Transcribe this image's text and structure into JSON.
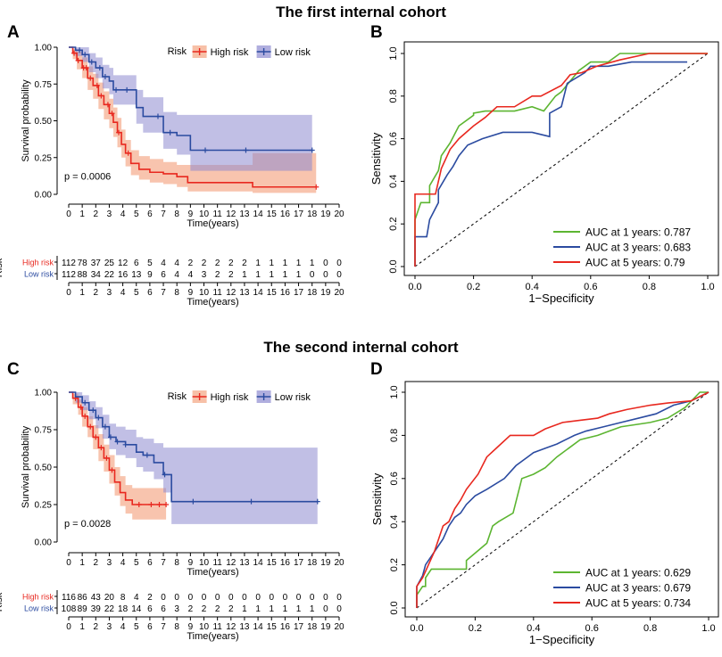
{
  "titles": {
    "cohort1": "The first internal cohort",
    "cohort2": "The second internal cohort"
  },
  "panel_letters": {
    "A": "A",
    "B": "B",
    "C": "C",
    "D": "D"
  },
  "colors": {
    "high_risk": "#e8281f",
    "low_risk": "#2b4ba0",
    "high_ci": "#f4a582",
    "low_ci": "#8e8bd0",
    "auc_1y": "#5cb531",
    "auc_3y": "#2b4ba0",
    "auc_5y": "#e8281f"
  },
  "chart_data": [
    {
      "panel": "A",
      "type": "line",
      "subtype": "kaplan-meier",
      "title": "",
      "xlabel": "Time(years)",
      "ylabel": "Survival probability",
      "xlim": [
        0,
        20
      ],
      "ylim": [
        0,
        1
      ],
      "x_ticks": [
        "0",
        "1",
        "2",
        "3",
        "4",
        "5",
        "6",
        "7",
        "8",
        "9",
        "10",
        "11",
        "12",
        "13",
        "14",
        "15",
        "16",
        "17",
        "18",
        "19",
        "20"
      ],
      "y_ticks": [
        "0.00",
        "0.25",
        "0.50",
        "0.75",
        "1.00"
      ],
      "legend_title": "Risk",
      "legend": [
        "High risk",
        "Low risk"
      ],
      "pvalue": "p = 0.0006",
      "series": [
        {
          "name": "High risk",
          "color_key": "high_risk",
          "x": [
            0,
            0.3,
            0.6,
            1,
            1.4,
            1.8,
            2.2,
            2.6,
            3,
            3.3,
            3.6,
            3.9,
            4.2,
            4.6,
            5.2,
            6,
            7,
            8,
            8.8,
            9.5,
            11,
            13.6,
            18.3
          ],
          "y": [
            1,
            0.96,
            0.91,
            0.86,
            0.79,
            0.74,
            0.67,
            0.61,
            0.55,
            0.49,
            0.42,
            0.34,
            0.28,
            0.21,
            0.17,
            0.15,
            0.14,
            0.12,
            0.08,
            0.08,
            0.08,
            0.05,
            0.05
          ],
          "lower": [
            1,
            0.92,
            0.85,
            0.79,
            0.71,
            0.65,
            0.58,
            0.51,
            0.45,
            0.39,
            0.32,
            0.25,
            0.19,
            0.13,
            0.1,
            0.08,
            0.07,
            0.05,
            0.02,
            0.02,
            0.02,
            0.01,
            0.01
          ],
          "upper": [
            1,
            0.99,
            0.97,
            0.93,
            0.87,
            0.82,
            0.76,
            0.7,
            0.65,
            0.59,
            0.52,
            0.44,
            0.37,
            0.3,
            0.26,
            0.24,
            0.22,
            0.2,
            0.2,
            0.2,
            0.2,
            0.28,
            0.28
          ],
          "censor_x": [
            0.4,
            0.7,
            1.1,
            1.3,
            1.6,
            2.1,
            2.4,
            2.9,
            3.2,
            3.7,
            4.4,
            18.3
          ]
        },
        {
          "name": "Low risk",
          "color_key": "low_risk",
          "x": [
            0,
            0.5,
            1,
            1.5,
            2,
            2.5,
            3,
            3.3,
            4,
            4.6,
            5,
            5.5,
            7,
            8,
            9,
            12,
            18
          ],
          "y": [
            1,
            0.98,
            0.95,
            0.9,
            0.86,
            0.8,
            0.77,
            0.71,
            0.71,
            0.71,
            0.59,
            0.53,
            0.42,
            0.4,
            0.3,
            0.3,
            0.3
          ],
          "lower": [
            1,
            0.94,
            0.9,
            0.83,
            0.79,
            0.72,
            0.68,
            0.61,
            0.61,
            0.61,
            0.48,
            0.42,
            0.31,
            0.27,
            0.16,
            0.16,
            0.16
          ],
          "upper": [
            1,
            1,
            1,
            0.96,
            0.93,
            0.88,
            0.86,
            0.81,
            0.81,
            0.81,
            0.71,
            0.66,
            0.56,
            0.54,
            0.54,
            0.54,
            0.54
          ],
          "censor_x": [
            0.8,
            1.2,
            1.7,
            2.3,
            2.7,
            3.5,
            4.3,
            6.6,
            7.5,
            10.1,
            13.1,
            18
          ]
        }
      ],
      "risk_table": {
        "label": "Risk",
        "xlabel": "Time(years)",
        "rows": [
          {
            "name": "High risk",
            "color_key": "high_risk",
            "values": [
              "112",
              "78",
              "37",
              "25",
              "12",
              "6",
              "5",
              "4",
              "4",
              "2",
              "2",
              "2",
              "2",
              "2",
              "1",
              "1",
              "1",
              "1",
              "1",
              "0",
              "0"
            ]
          },
          {
            "name": "Low risk",
            "color_key": "low_risk",
            "values": [
              "112",
              "88",
              "34",
              "22",
              "16",
              "13",
              "9",
              "6",
              "4",
              "4",
              "3",
              "2",
              "2",
              "1",
              "1",
              "1",
              "1",
              "1",
              "0",
              "0",
              "0"
            ]
          }
        ]
      }
    },
    {
      "panel": "B",
      "type": "line",
      "subtype": "roc",
      "xlabel": "1−Specificity",
      "ylabel": "Sensitivity",
      "xlim": [
        0,
        1
      ],
      "ylim": [
        0,
        1
      ],
      "x_ticks": [
        "0.0",
        "0.2",
        "0.4",
        "0.6",
        "0.8",
        "1.0"
      ],
      "y_ticks": [
        "0.0",
        "0.2",
        "0.4",
        "0.6",
        "0.8",
        "1.0"
      ],
      "series": [
        {
          "name": "AUC at 1 years: 0.787",
          "color_key": "auc_1y",
          "x": [
            0,
            0,
            0.02,
            0.05,
            0.05,
            0.08,
            0.09,
            0.12,
            0.15,
            0.2,
            0.2,
            0.24,
            0.34,
            0.4,
            0.44,
            0.48,
            0.5,
            0.56,
            0.6,
            0.66,
            0.7,
            0.76,
            1
          ],
          "y": [
            0,
            0.22,
            0.3,
            0.3,
            0.38,
            0.45,
            0.52,
            0.58,
            0.66,
            0.71,
            0.72,
            0.73,
            0.73,
            0.75,
            0.73,
            0.8,
            0.82,
            0.92,
            0.96,
            0.96,
            1,
            1,
            1
          ]
        },
        {
          "name": "AUC at 3 years: 0.683",
          "color_key": "auc_3y",
          "x": [
            0,
            0,
            0.04,
            0.05,
            0.08,
            0.08,
            0.11,
            0.13,
            0.15,
            0.18,
            0.23,
            0.3,
            0.4,
            0.46,
            0.46,
            0.5,
            0.52,
            0.58,
            0.6,
            0.66,
            0.74,
            0.93
          ],
          "y": [
            0,
            0.14,
            0.14,
            0.22,
            0.3,
            0.36,
            0.43,
            0.47,
            0.52,
            0.57,
            0.6,
            0.63,
            0.63,
            0.61,
            0.72,
            0.75,
            0.86,
            0.91,
            0.94,
            0.94,
            0.96,
            0.96
          ]
        },
        {
          "name": "AUC at 5 years: 0.79",
          "color_key": "auc_5y",
          "x": [
            0,
            0,
            0.07,
            0.09,
            0.12,
            0.15,
            0.2,
            0.24,
            0.28,
            0.34,
            0.4,
            0.43,
            0.5,
            0.53,
            0.57,
            0.62,
            0.7,
            0.8,
            1
          ],
          "y": [
            0,
            0.34,
            0.34,
            0.46,
            0.55,
            0.6,
            0.66,
            0.7,
            0.75,
            0.75,
            0.8,
            0.8,
            0.85,
            0.9,
            0.91,
            0.94,
            0.97,
            1,
            1
          ]
        }
      ],
      "reference_line": "diagonal"
    },
    {
      "panel": "C",
      "type": "line",
      "subtype": "kaplan-meier",
      "xlabel": "Time(years)",
      "ylabel": "Survival probability",
      "xlim": [
        0,
        20
      ],
      "ylim": [
        0,
        1
      ],
      "x_ticks": [
        "0",
        "1",
        "2",
        "3",
        "4",
        "5",
        "6",
        "7",
        "8",
        "9",
        "10",
        "11",
        "12",
        "13",
        "14",
        "15",
        "16",
        "17",
        "18",
        "19",
        "20"
      ],
      "y_ticks": [
        "0.00",
        "0.25",
        "0.50",
        "0.75",
        "1.00"
      ],
      "legend_title": "Risk",
      "legend": [
        "High risk",
        "Low risk"
      ],
      "pvalue": "p = 0.0028",
      "series": [
        {
          "name": "High risk",
          "color_key": "high_risk",
          "x": [
            0,
            0.3,
            0.7,
            1,
            1.4,
            1.8,
            2.2,
            2.6,
            3,
            3.4,
            3.8,
            4.2,
            4.7,
            5.4,
            6,
            7.2
          ],
          "y": [
            1,
            0.96,
            0.9,
            0.84,
            0.77,
            0.7,
            0.63,
            0.56,
            0.48,
            0.4,
            0.33,
            0.28,
            0.25,
            0.25,
            0.25,
            0.25
          ],
          "lower": [
            1,
            0.92,
            0.85,
            0.77,
            0.7,
            0.62,
            0.54,
            0.47,
            0.39,
            0.31,
            0.24,
            0.19,
            0.15,
            0.15,
            0.15,
            0.15
          ],
          "upper": [
            1,
            0.99,
            0.95,
            0.9,
            0.84,
            0.78,
            0.72,
            0.65,
            0.58,
            0.5,
            0.44,
            0.38,
            0.36,
            0.36,
            0.36,
            0.36
          ],
          "censor_x": [
            0.5,
            0.9,
            1.2,
            1.6,
            2.0,
            2.4,
            2.8,
            3.2,
            5.2,
            6.1,
            6.7,
            7.2
          ]
        },
        {
          "name": "Low risk",
          "color_key": "low_risk",
          "x": [
            0,
            0.5,
            1,
            1.5,
            2,
            2.5,
            3,
            3.5,
            4.2,
            5,
            5.5,
            6.3,
            7,
            7.6,
            18.4
          ],
          "y": [
            1,
            0.97,
            0.93,
            0.88,
            0.83,
            0.77,
            0.7,
            0.67,
            0.65,
            0.6,
            0.58,
            0.53,
            0.45,
            0.27,
            0.27
          ],
          "lower": [
            1,
            0.93,
            0.88,
            0.82,
            0.76,
            0.69,
            0.62,
            0.58,
            0.56,
            0.5,
            0.47,
            0.42,
            0.33,
            0.12,
            0.12
          ],
          "upper": [
            1,
            1,
            0.98,
            0.94,
            0.9,
            0.85,
            0.79,
            0.77,
            0.75,
            0.7,
            0.69,
            0.66,
            0.63,
            0.63,
            0.63
          ],
          "censor_x": [
            1.2,
            1.8,
            2.2,
            2.7,
            3.1,
            3.6,
            4.2,
            5.8,
            7.1,
            9.2,
            13.5,
            18.4
          ]
        }
      ],
      "risk_table": {
        "label": "Risk",
        "xlabel": "Time(years)",
        "rows": [
          {
            "name": "High risk",
            "color_key": "high_risk",
            "values": [
              "116",
              "86",
              "43",
              "20",
              "8",
              "4",
              "2",
              "0",
              "0",
              "0",
              "0",
              "0",
              "0",
              "0",
              "0",
              "0",
              "0",
              "0",
              "0",
              "0",
              "0"
            ]
          },
          {
            "name": "Low risk",
            "color_key": "low_risk",
            "values": [
              "108",
              "89",
              "39",
              "22",
              "18",
              "14",
              "6",
              "6",
              "3",
              "2",
              "2",
              "2",
              "2",
              "1",
              "1",
              "1",
              "1",
              "1",
              "1",
              "0",
              "0"
            ]
          }
        ]
      }
    },
    {
      "panel": "D",
      "type": "line",
      "subtype": "roc",
      "xlabel": "1−Specificity",
      "ylabel": "Sensitivity",
      "xlim": [
        0,
        1
      ],
      "ylim": [
        0,
        1
      ],
      "x_ticks": [
        "0.0",
        "0.2",
        "0.4",
        "0.6",
        "0.8",
        "1.0"
      ],
      "y_ticks": [
        "0.0",
        "0.2",
        "0.4",
        "0.6",
        "0.8",
        "1.0"
      ],
      "series": [
        {
          "name": "AUC at 1 years: 0.629",
          "color_key": "auc_1y",
          "x": [
            0,
            0,
            0.02,
            0.03,
            0.03,
            0.05,
            0.17,
            0.17,
            0.24,
            0.26,
            0.28,
            0.33,
            0.36,
            0.4,
            0.44,
            0.48,
            0.52,
            0.56,
            0.62,
            0.66,
            0.7,
            0.8,
            0.86,
            0.92,
            0.97,
            1
          ],
          "y": [
            0,
            0.06,
            0.1,
            0.1,
            0.14,
            0.18,
            0.18,
            0.22,
            0.3,
            0.38,
            0.4,
            0.44,
            0.6,
            0.62,
            0.65,
            0.7,
            0.74,
            0.78,
            0.8,
            0.82,
            0.84,
            0.86,
            0.88,
            0.93,
            1,
            1
          ]
        },
        {
          "name": "AUC at 3 years: 0.679",
          "color_key": "auc_3y",
          "x": [
            0,
            0,
            0.02,
            0.03,
            0.05,
            0.07,
            0.09,
            0.11,
            0.13,
            0.15,
            0.17,
            0.2,
            0.24,
            0.3,
            0.34,
            0.38,
            0.4,
            0.44,
            0.48,
            0.54,
            0.58,
            0.64,
            0.7,
            0.76,
            0.82,
            0.88,
            0.94,
            1
          ],
          "y": [
            0,
            0.1,
            0.15,
            0.2,
            0.24,
            0.28,
            0.32,
            0.38,
            0.42,
            0.44,
            0.48,
            0.52,
            0.55,
            0.6,
            0.66,
            0.7,
            0.72,
            0.74,
            0.76,
            0.8,
            0.82,
            0.84,
            0.86,
            0.88,
            0.9,
            0.94,
            0.96,
            1
          ]
        },
        {
          "name": "AUC at 5 years: 0.734",
          "color_key": "auc_5y",
          "x": [
            0,
            0,
            0.02,
            0.04,
            0.06,
            0.09,
            0.11,
            0.13,
            0.15,
            0.17,
            0.21,
            0.24,
            0.28,
            0.32,
            0.4,
            0.44,
            0.5,
            0.56,
            0.62,
            0.66,
            0.72,
            0.8,
            0.86,
            0.94,
            1
          ],
          "y": [
            0,
            0.1,
            0.14,
            0.2,
            0.26,
            0.38,
            0.4,
            0.46,
            0.5,
            0.55,
            0.62,
            0.7,
            0.75,
            0.8,
            0.8,
            0.83,
            0.86,
            0.87,
            0.88,
            0.9,
            0.92,
            0.94,
            0.95,
            0.96,
            1
          ]
        }
      ],
      "reference_line": "diagonal"
    }
  ]
}
